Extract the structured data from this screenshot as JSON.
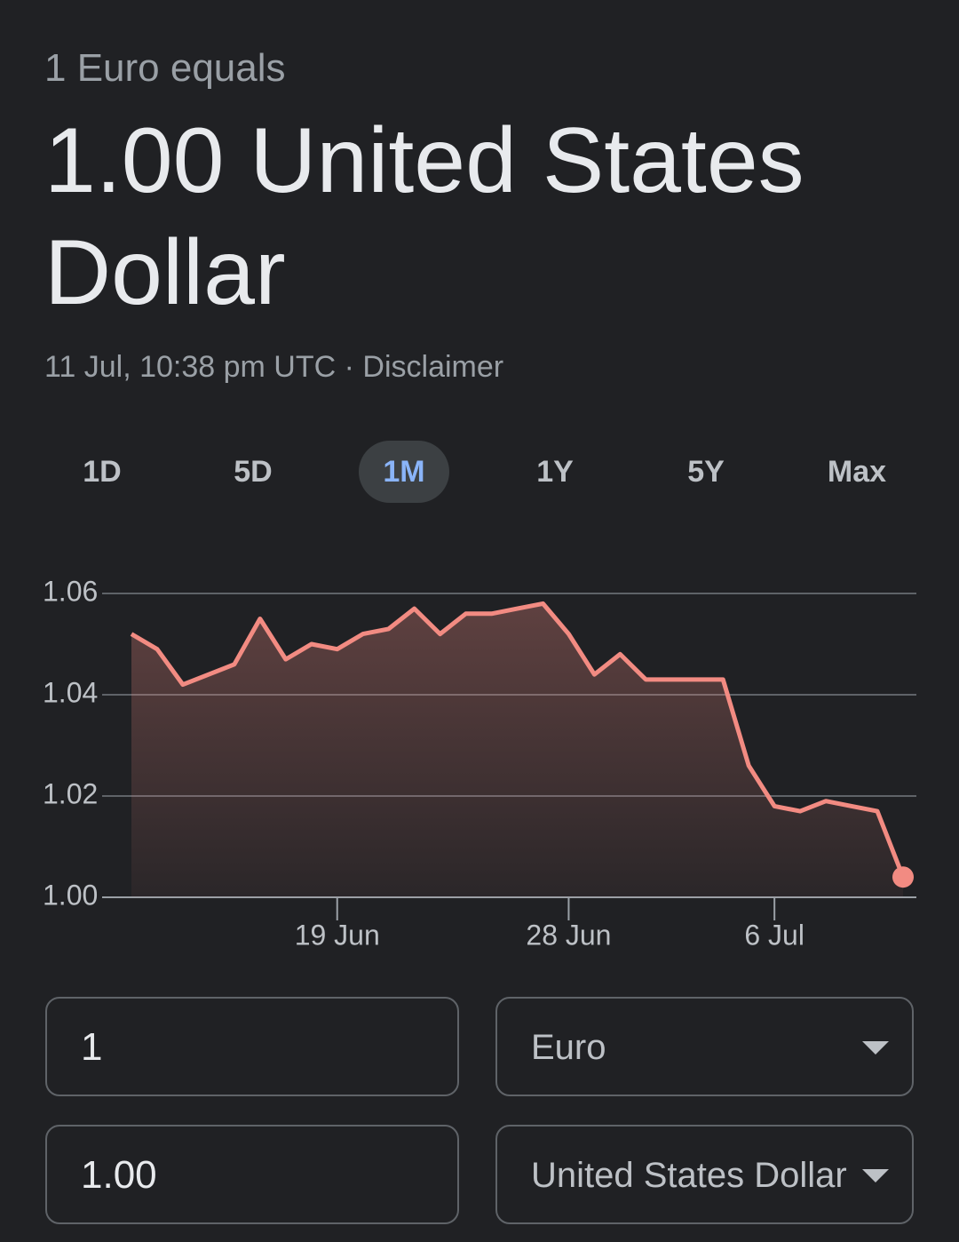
{
  "header": {
    "subtitle": "1 Euro equals",
    "amount": "1.00 United States Dollar",
    "timestamp": "11 Jul, 10:38 pm UTC",
    "separator": "·",
    "disclaimer": "Disclaimer"
  },
  "ranges": [
    "1D",
    "5D",
    "1M",
    "1Y",
    "5Y",
    "Max"
  ],
  "selected_range": "1M",
  "chart_data": {
    "type": "line",
    "x": [
      "11 Jun",
      "12 Jun",
      "13 Jun",
      "14 Jun",
      "15 Jun",
      "16 Jun",
      "17 Jun",
      "18 Jun",
      "19 Jun",
      "20 Jun",
      "21 Jun",
      "22 Jun",
      "23 Jun",
      "24 Jun",
      "25 Jun",
      "26 Jun",
      "27 Jun",
      "28 Jun",
      "29 Jun",
      "30 Jun",
      "1 Jul",
      "2 Jul",
      "3 Jul",
      "4 Jul",
      "5 Jul",
      "6 Jul",
      "7 Jul",
      "8 Jul",
      "9 Jul",
      "10 Jul",
      "11 Jul"
    ],
    "series": [
      {
        "color": "#f28b82",
        "values": [
          1.052,
          1.049,
          1.042,
          1.044,
          1.046,
          1.055,
          1.047,
          1.05,
          1.049,
          1.052,
          1.053,
          1.057,
          1.052,
          1.056,
          1.056,
          1.057,
          1.058,
          1.052,
          1.044,
          1.048,
          1.043,
          1.043,
          1.043,
          1.043,
          1.026,
          1.018,
          1.017,
          1.019,
          1.018,
          1.017,
          1.004
        ]
      }
    ],
    "xticks": [
      "19 Jun",
      "28 Jun",
      "6 Jul"
    ],
    "ylim": [
      1.0,
      1.06
    ],
    "yticks": [
      {
        "value": 1,
        "label": "1.00"
      },
      1.02,
      1.04,
      1.06
    ],
    "grid": true
  },
  "converter": {
    "from_amount": "1",
    "from_currency": "Euro",
    "to_amount": "1.00",
    "to_currency": "United States Dollar"
  }
}
